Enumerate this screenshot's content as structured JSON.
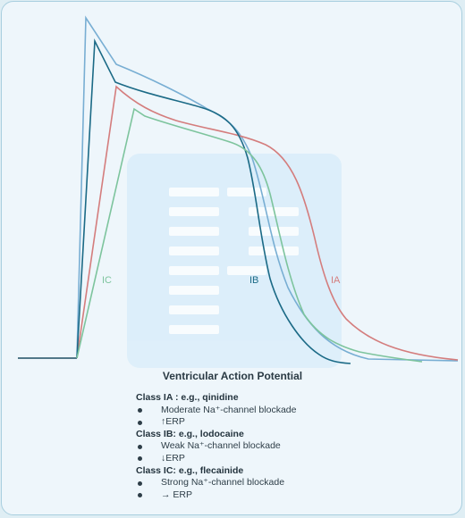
{
  "diagram": {
    "caption": "Ventricular Action Potential",
    "labels": {
      "ia": "IA",
      "ib": "IB",
      "ic": "IC"
    },
    "colors": {
      "baseline": "#1d4f63",
      "normal": "#78aed3",
      "ia": "#d47d7d",
      "ib": "#1b6a86",
      "ic": "#7dc49d",
      "watermark": "#dff0fb"
    }
  },
  "notes": [
    {
      "title": "Class IA : e.g., qinidine",
      "bullets": [
        "Moderate Na⁺-channel blockade",
        "↑ERP"
      ]
    },
    {
      "title": "Class IB: e.g., lodocaine",
      "bullets": [
        "Weak Na⁺-channel blockade",
        "↓ERP"
      ]
    },
    {
      "title": "Class IC: e.g., flecainide",
      "bullets": [
        "Strong Na⁺-channel blockade",
        "→ ERP"
      ]
    }
  ]
}
